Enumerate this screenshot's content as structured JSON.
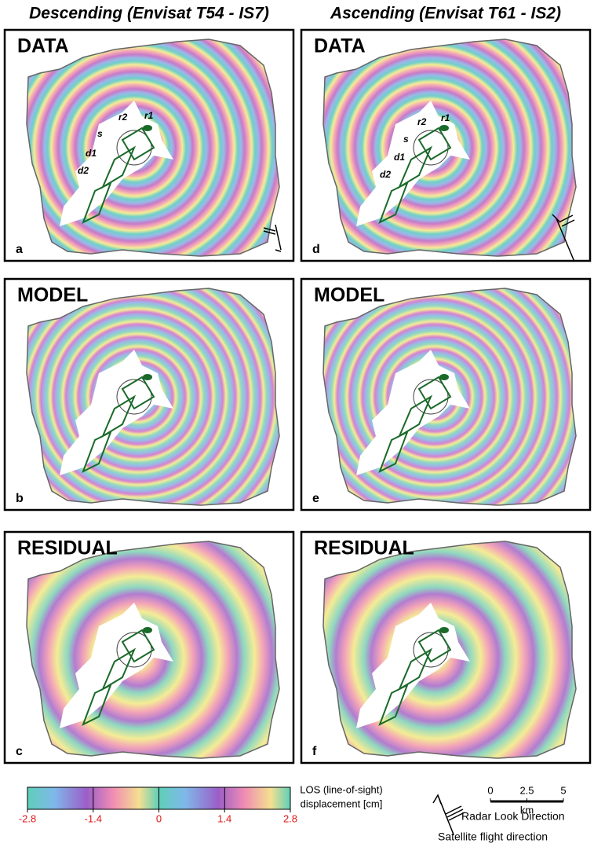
{
  "columns": [
    {
      "title": "Descending (Envisat T54 - IS7)",
      "panels": [
        {
          "label": "DATA",
          "letter": "a",
          "annotations": [
            "r2",
            "r1",
            "s",
            "d1",
            "d2"
          ]
        },
        {
          "label": "MODEL",
          "letter": "b"
        },
        {
          "label": "RESIDUAL",
          "letter": "c"
        }
      ]
    },
    {
      "title": "Ascending (Envisat T61 - IS2)",
      "panels": [
        {
          "label": "DATA",
          "letter": "d",
          "annotations": [
            "r2",
            "r1",
            "s",
            "d1",
            "d2"
          ]
        },
        {
          "label": "MODEL",
          "letter": "e"
        },
        {
          "label": "RESIDUAL",
          "letter": "f"
        }
      ]
    }
  ],
  "colorbar": {
    "label": [
      "LOS (line-of-sight)",
      "displacement [cm]"
    ],
    "range": [
      -2.8,
      2.8
    ],
    "ticks": [
      -2.8,
      -1.4,
      0,
      1.4,
      2.8
    ]
  },
  "scale_bar": {
    "range": [
      0,
      5
    ],
    "ticks": [
      0,
      2.5,
      5
    ],
    "unit": "km"
  },
  "legend": {
    "radar": "Radar Look Direction",
    "flight": "Satellite flight direction"
  }
}
